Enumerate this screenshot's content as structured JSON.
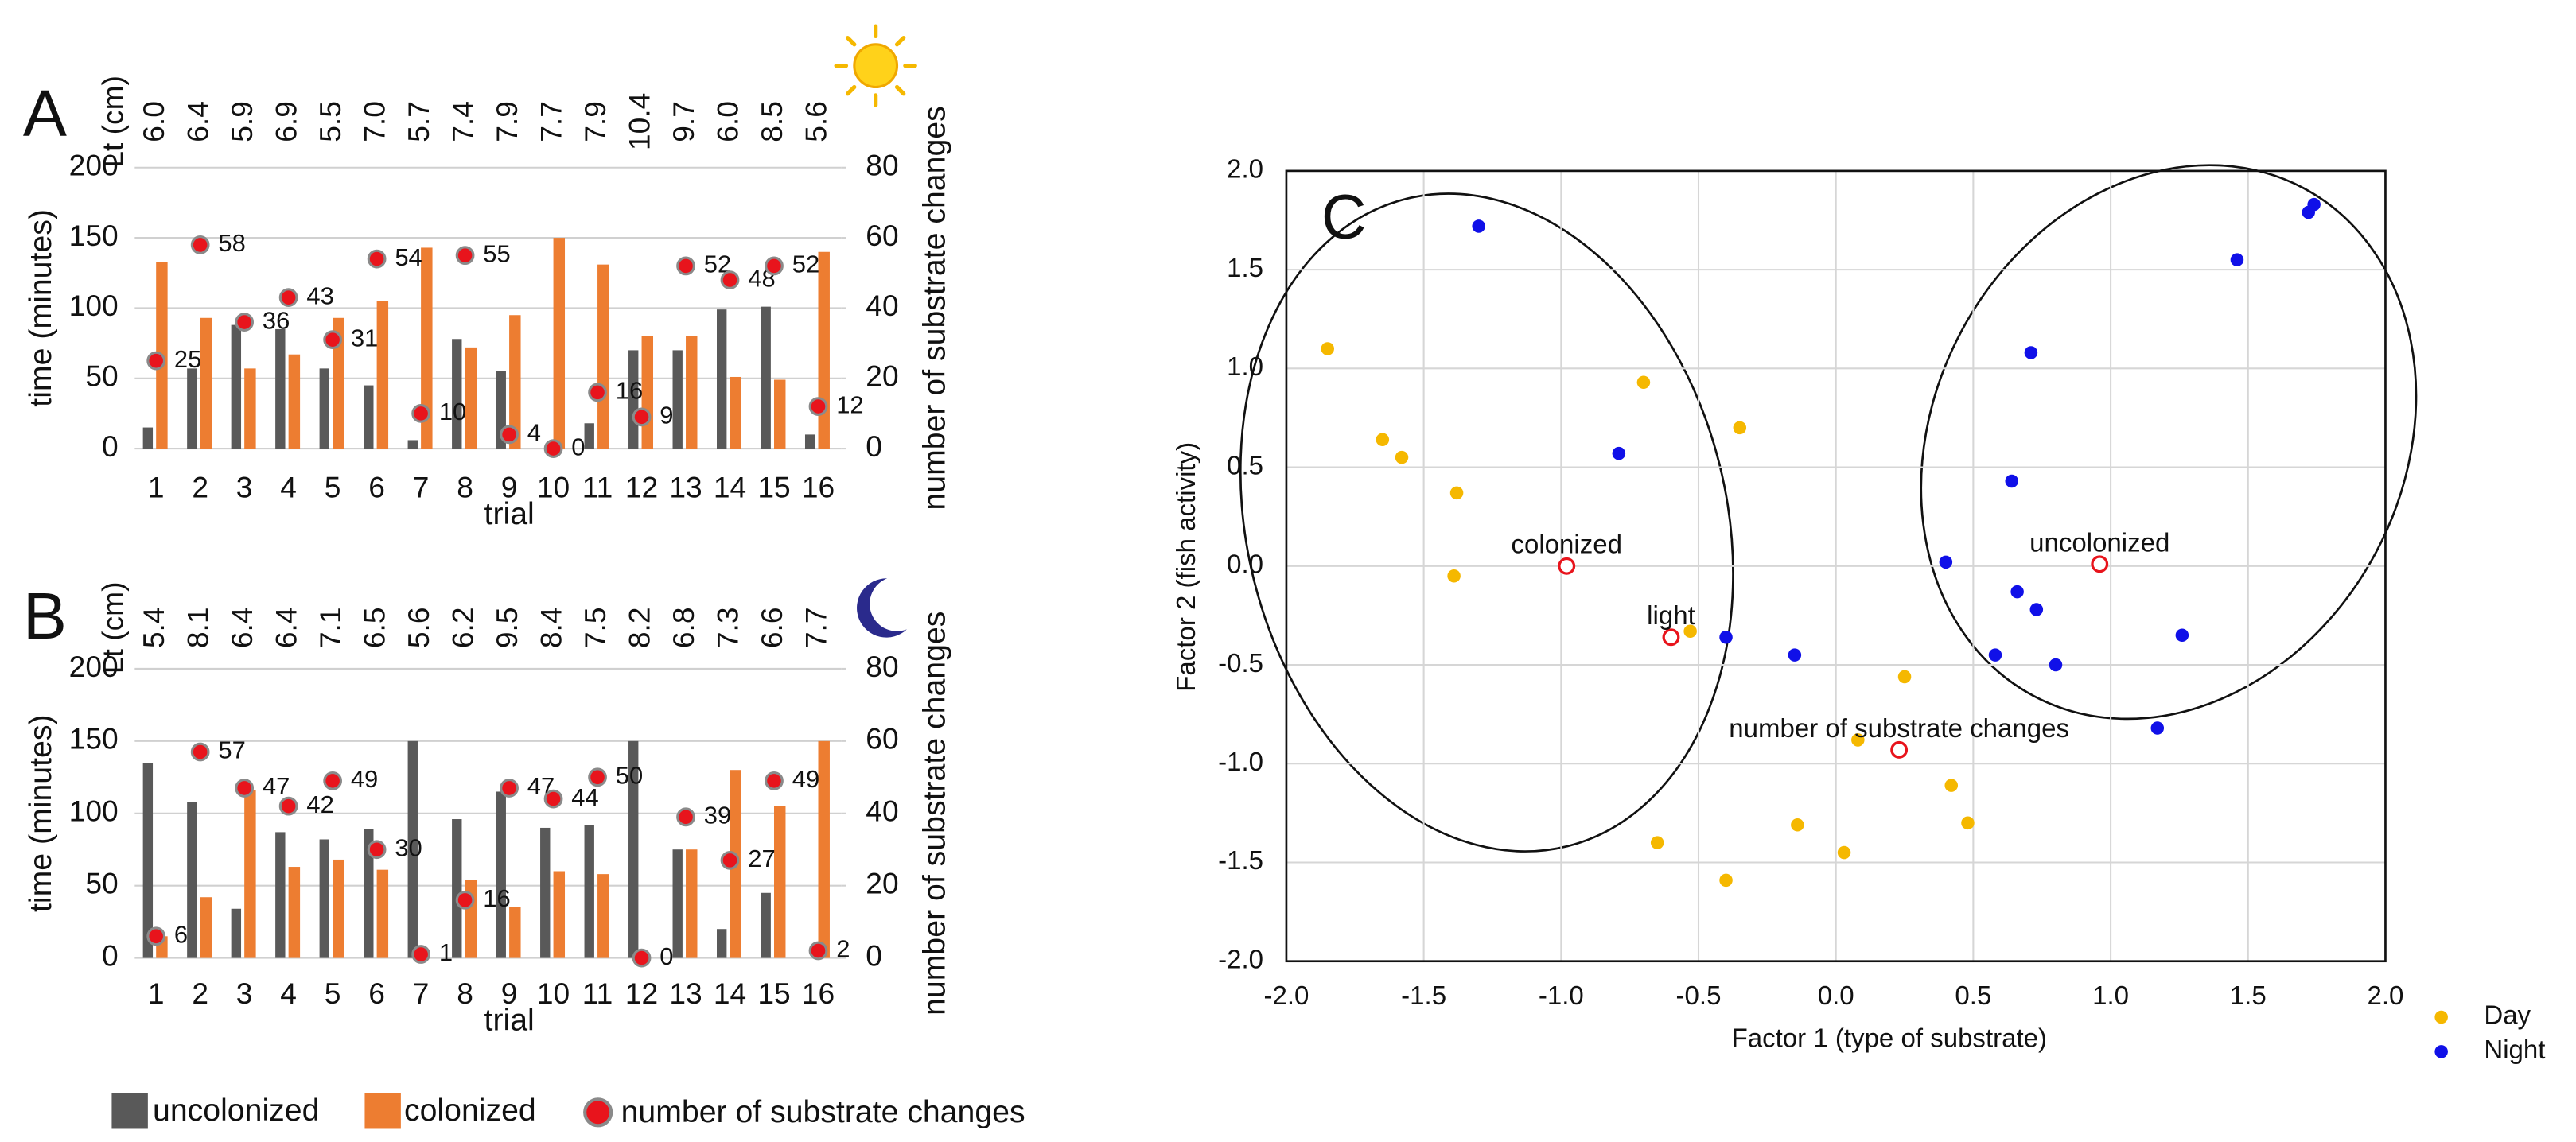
{
  "chart_data": [
    {
      "type": "bar",
      "panel": "A",
      "length_label": "Lt (cm)",
      "lengths": [
        "6.0",
        "6.4",
        "5.9",
        "6.9",
        "5.5",
        "7.0",
        "5.7",
        "7.4",
        "7.9",
        "7.7",
        "7.9",
        "10.4",
        "9.7",
        "6.0",
        "8.5",
        "5.6"
      ],
      "categories": [
        1,
        2,
        3,
        4,
        5,
        6,
        7,
        8,
        9,
        10,
        11,
        12,
        13,
        14,
        15,
        16
      ],
      "xlabel": "trial",
      "ylabel": "time (minutes)",
      "y2label": "number of substrate changes",
      "ylim": [
        0,
        200
      ],
      "yticks": [
        0,
        50,
        100,
        150,
        200
      ],
      "y2lim": [
        0,
        80
      ],
      "y2ticks": [
        0,
        20,
        40,
        60,
        80
      ],
      "grid": true,
      "series": [
        {
          "name": "uncolonized",
          "color": "#595959",
          "values": [
            15,
            57,
            88,
            85,
            57,
            45,
            6,
            78,
            55,
            0,
            18,
            70,
            70,
            99,
            101,
            10
          ]
        },
        {
          "name": "colonized",
          "color": "#ed7d31",
          "values": [
            133,
            93,
            57,
            67,
            93,
            105,
            143,
            72,
            95,
            150,
            131,
            80,
            80,
            51,
            49,
            140
          ]
        },
        {
          "name": "number of substrate changes",
          "color": "#e8141c",
          "axis": "y2",
          "values": [
            25,
            58,
            36,
            43,
            31,
            54,
            10,
            55,
            4,
            0,
            16,
            9,
            52,
            48,
            52,
            12
          ]
        }
      ]
    },
    {
      "type": "bar",
      "panel": "B",
      "length_label": "Lt (cm)",
      "lengths": [
        "5.4",
        "8.1",
        "6.4",
        "6.4",
        "7.1",
        "6.5",
        "5.6",
        "6.2",
        "9.5",
        "8.4",
        "7.5",
        "8.2",
        "6.8",
        "7.3",
        "6.6",
        "7.7"
      ],
      "categories": [
        1,
        2,
        3,
        4,
        5,
        6,
        7,
        8,
        9,
        10,
        11,
        12,
        13,
        14,
        15,
        16
      ],
      "xlabel": "trial",
      "ylabel": "time (minutes)",
      "y2label": "number of substrate changes",
      "ylim": [
        0,
        200
      ],
      "yticks": [
        0,
        50,
        100,
        150,
        200
      ],
      "y2lim": [
        0,
        80
      ],
      "y2ticks": [
        0,
        20,
        40,
        60,
        80
      ],
      "grid": true,
      "series": [
        {
          "color": "#595959",
          "values": [
            135,
            108,
            34,
            87,
            82,
            89,
            150,
            96,
            115,
            90,
            92,
            150,
            75,
            20,
            45,
            0
          ]
        },
        {
          "color": "#ed7d31",
          "values": [
            15,
            42,
            116,
            63,
            68,
            61,
            0,
            54,
            35,
            60,
            58,
            0,
            75,
            130,
            105,
            150
          ]
        },
        {
          "color": "#e8141c",
          "axis": "y2",
          "values": [
            6,
            57,
            47,
            42,
            49,
            30,
            1,
            16,
            47,
            44,
            50,
            0,
            39,
            27,
            49,
            2
          ]
        }
      ]
    },
    {
      "type": "scatter",
      "panel": "C",
      "xlabel": "Factor 1 (type of substrate)",
      "ylabel": "Factor 2 (fish activity)",
      "xlim": [
        -2,
        2
      ],
      "ylim": [
        -2,
        2
      ],
      "grid": true,
      "xticks": [
        {
          "value": -2,
          "label": "-2.0"
        },
        {
          "value": -1.5,
          "label": "-1.5"
        },
        {
          "value": -1,
          "label": "-1.0"
        },
        {
          "value": -0.5,
          "label": "-0.5"
        },
        {
          "value": 0,
          "label": "0.0"
        },
        {
          "value": 0.5,
          "label": "0.5"
        },
        {
          "value": 1,
          "label": "1.0"
        },
        {
          "value": 1.5,
          "label": "1.5"
        },
        {
          "value": 2,
          "label": "2.0"
        }
      ],
      "yticks": [
        {
          "value": -2,
          "label": "-2.0"
        },
        {
          "value": -1.5,
          "label": "-1.5"
        },
        {
          "value": -1,
          "label": "-1.0"
        },
        {
          "value": -0.5,
          "label": "-0.5"
        },
        {
          "value": 0,
          "label": "0.0"
        },
        {
          "value": 0.5,
          "label": "0.5"
        },
        {
          "value": 1,
          "label": "1.0"
        },
        {
          "value": 1.5,
          "label": "1.5"
        },
        {
          "value": 2,
          "label": "2.0"
        }
      ],
      "series": [
        {
          "name": "Day",
          "color": "#f5b800",
          "x": [
            -1.85,
            -1.65,
            -1.58,
            -1.38,
            -1.39,
            -0.7,
            -0.35,
            -0.53,
            0.25,
            0.08,
            0.42,
            0.48,
            -0.14,
            0.03,
            -0.65,
            -0.4
          ],
          "values": [
            1.1,
            0.64,
            0.55,
            0.37,
            -0.05,
            0.93,
            0.7,
            -0.33,
            -0.56,
            -0.88,
            -1.11,
            -1.3,
            -1.31,
            -1.45,
            -1.4,
            -1.59
          ]
        },
        {
          "name": "Night",
          "color": "#1010e8",
          "x": [
            -1.3,
            -0.79,
            -0.4,
            -0.15,
            0.71,
            0.64,
            0.4,
            0.66,
            0.73,
            0.58,
            0.8,
            1.26,
            1.17,
            1.46,
            1.72,
            1.74
          ],
          "values": [
            1.72,
            0.57,
            -0.36,
            -0.45,
            1.08,
            0.43,
            0.02,
            -0.13,
            -0.22,
            -0.45,
            -0.5,
            -0.35,
            -0.82,
            1.55,
            1.79,
            1.83
          ]
        }
      ],
      "supplementary_color": "#e8141c",
      "supplementary": [
        {
          "label": "colonized",
          "x": -0.98,
          "y": 0
        },
        {
          "label": "light",
          "x": -0.6,
          "y": -0.36
        },
        {
          "label": "number of substrate changes",
          "x": 0.23,
          "y": -0.93
        },
        {
          "label": "uncolonized",
          "x": 0.96,
          "y": 0.01
        }
      ]
    }
  ]
}
